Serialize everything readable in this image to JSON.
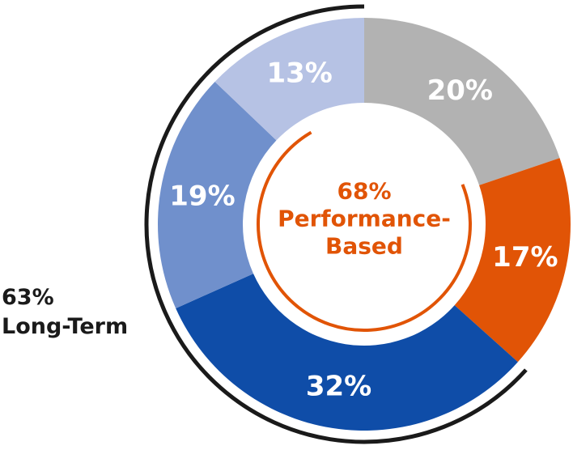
{
  "chart_data": {
    "type": "pie",
    "values": [
      20,
      17,
      32,
      19,
      13
    ],
    "labels": [
      "20%",
      "17%",
      "32%",
      "19%",
      "13%"
    ],
    "colors": [
      "#b2b2b2",
      "#e15406",
      "#0f4da8",
      "#7090cc",
      "#b6c2e4"
    ],
    "annotations": {
      "performance": {
        "line1": "68%",
        "line2": "Performance-",
        "line3": "Based",
        "color": "#e15406"
      },
      "long_term": {
        "line1": "63%",
        "line2": "Long-Term",
        "color": "#1a1a1a"
      }
    }
  }
}
